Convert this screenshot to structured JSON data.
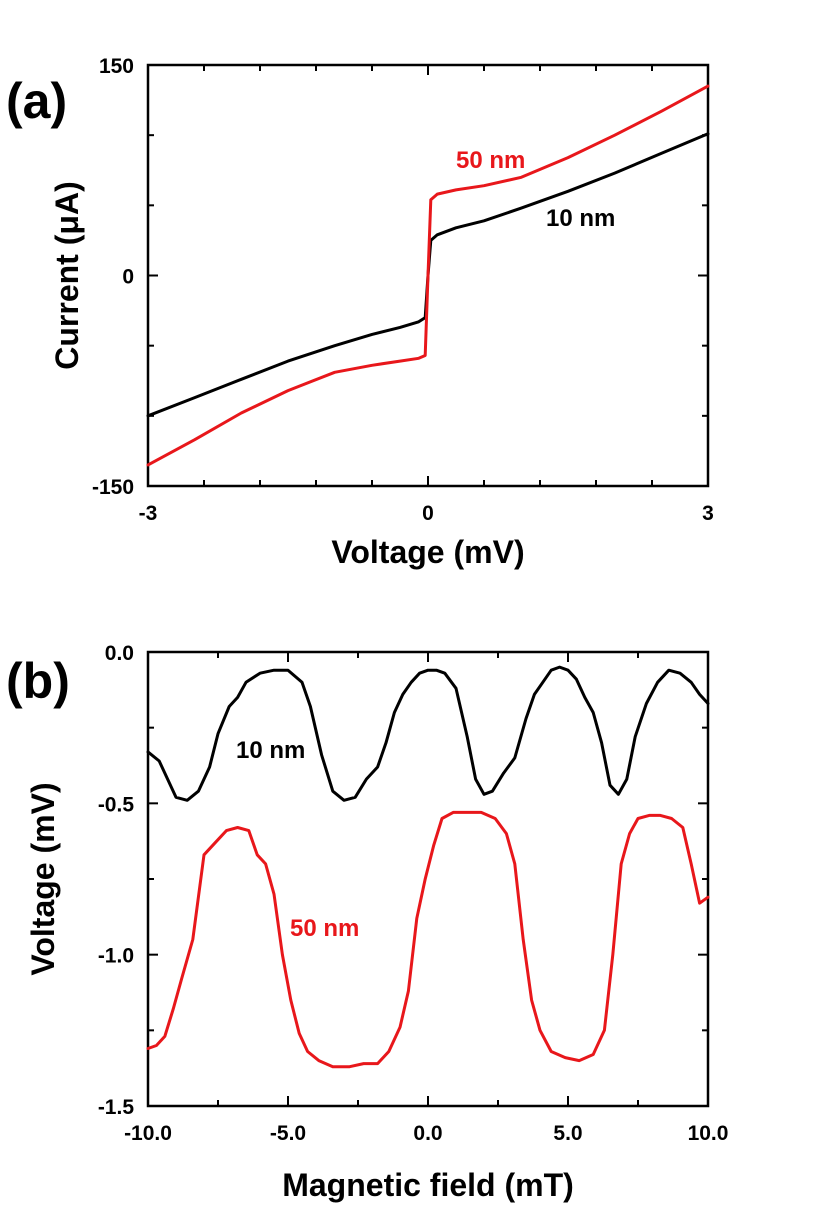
{
  "chart_data": [
    {
      "type": "line",
      "panel_label": "(a)",
      "xlabel": "Voltage (mV)",
      "ylabel": "Current (μA)",
      "xlim": [
        -3,
        3
      ],
      "ylim": [
        -150,
        150
      ],
      "x_ticks": [
        "-3",
        "0",
        "3"
      ],
      "y_ticks": [
        "-150",
        "0",
        "150"
      ],
      "grid": false,
      "series": [
        {
          "name": "10 nm",
          "color": "#000000",
          "x": [
            -3.0,
            -2.5,
            -2.0,
            -1.5,
            -1.0,
            -0.6,
            -0.3,
            -0.1,
            -0.03,
            0.0,
            0.03,
            0.1,
            0.3,
            0.6,
            1.0,
            1.5,
            2.0,
            2.5,
            3.0
          ],
          "y": [
            -100,
            -87,
            -74,
            -61,
            -50,
            -42,
            -37,
            -33,
            -30,
            0,
            25,
            29,
            34,
            39,
            48,
            60,
            73,
            87,
            101
          ]
        },
        {
          "name": "50 nm",
          "color": "#e8171b",
          "x": [
            -3.0,
            -2.5,
            -2.0,
            -1.5,
            -1.0,
            -0.6,
            -0.3,
            -0.1,
            -0.03,
            0.0,
            0.03,
            0.1,
            0.3,
            0.6,
            1.0,
            1.5,
            2.0,
            2.5,
            3.0
          ],
          "y": [
            -135,
            -117,
            -98,
            -82,
            -69,
            -64,
            -61,
            -59,
            -57,
            0,
            54,
            58,
            61,
            64,
            70,
            84,
            100,
            117,
            135
          ]
        }
      ]
    },
    {
      "type": "line",
      "panel_label": "(b)",
      "xlabel": "Magnetic field (mT)",
      "ylabel": "Voltage (mV)",
      "xlim": [
        -10.0,
        10.0
      ],
      "ylim": [
        -1.5,
        0.0
      ],
      "x_ticks": [
        "-10.0",
        "-5.0",
        "0.0",
        "5.0",
        "10.0"
      ],
      "y_ticks": [
        "-1.5",
        "-1.0",
        "-0.5",
        "0.0"
      ],
      "grid": false,
      "series": [
        {
          "name": "10 nm",
          "color": "#000000",
          "x": [
            -10.0,
            -9.6,
            -9.3,
            -9.0,
            -8.6,
            -8.2,
            -7.8,
            -7.5,
            -7.1,
            -6.8,
            -6.5,
            -6.0,
            -5.5,
            -5.0,
            -4.5,
            -4.2,
            -3.8,
            -3.4,
            -3.0,
            -2.6,
            -2.2,
            -1.8,
            -1.5,
            -1.2,
            -0.9,
            -0.6,
            -0.3,
            0.0,
            0.3,
            0.6,
            1.0,
            1.4,
            1.7,
            2.0,
            2.3,
            2.7,
            3.1,
            3.5,
            3.8,
            4.1,
            4.4,
            4.7,
            5.0,
            5.3,
            5.6,
            5.9,
            6.2,
            6.5,
            6.8,
            7.1,
            7.4,
            7.8,
            8.2,
            8.6,
            9.0,
            9.4,
            9.7,
            10.0
          ],
          "y": [
            -0.33,
            -0.36,
            -0.42,
            -0.48,
            -0.49,
            -0.46,
            -0.38,
            -0.27,
            -0.18,
            -0.15,
            -0.1,
            -0.07,
            -0.06,
            -0.06,
            -0.1,
            -0.18,
            -0.34,
            -0.46,
            -0.49,
            -0.48,
            -0.42,
            -0.38,
            -0.3,
            -0.2,
            -0.14,
            -0.1,
            -0.07,
            -0.06,
            -0.06,
            -0.07,
            -0.12,
            -0.28,
            -0.42,
            -0.47,
            -0.46,
            -0.4,
            -0.35,
            -0.22,
            -0.14,
            -0.1,
            -0.06,
            -0.05,
            -0.06,
            -0.09,
            -0.15,
            -0.2,
            -0.3,
            -0.44,
            -0.47,
            -0.42,
            -0.28,
            -0.17,
            -0.1,
            -0.06,
            -0.07,
            -0.1,
            -0.14,
            -0.17
          ]
        },
        {
          "name": "50 nm",
          "color": "#e8171b",
          "x": [
            -10.0,
            -9.7,
            -9.4,
            -9.1,
            -8.8,
            -8.4,
            -8.0,
            -7.6,
            -7.2,
            -6.8,
            -6.4,
            -6.1,
            -5.8,
            -5.5,
            -5.2,
            -4.9,
            -4.6,
            -4.3,
            -3.9,
            -3.4,
            -2.8,
            -2.3,
            -1.8,
            -1.4,
            -1.0,
            -0.7,
            -0.4,
            -0.1,
            0.2,
            0.5,
            0.9,
            1.4,
            1.9,
            2.4,
            2.8,
            3.1,
            3.4,
            3.7,
            4.0,
            4.4,
            4.9,
            5.4,
            5.9,
            6.3,
            6.6,
            6.9,
            7.2,
            7.5,
            7.9,
            8.3,
            8.7,
            9.1,
            9.4,
            9.7,
            10.0
          ],
          "y": [
            -1.31,
            -1.3,
            -1.27,
            -1.18,
            -1.08,
            -0.95,
            -0.67,
            -0.63,
            -0.59,
            -0.58,
            -0.59,
            -0.67,
            -0.7,
            -0.8,
            -1.0,
            -1.15,
            -1.26,
            -1.32,
            -1.35,
            -1.37,
            -1.37,
            -1.36,
            -1.36,
            -1.32,
            -1.24,
            -1.12,
            -0.88,
            -0.75,
            -0.64,
            -0.55,
            -0.53,
            -0.53,
            -0.53,
            -0.55,
            -0.6,
            -0.7,
            -0.95,
            -1.15,
            -1.25,
            -1.32,
            -1.34,
            -1.35,
            -1.33,
            -1.25,
            -1.0,
            -0.7,
            -0.6,
            -0.55,
            -0.54,
            -0.54,
            -0.55,
            -0.58,
            -0.7,
            -0.83,
            -0.81
          ]
        }
      ]
    }
  ]
}
